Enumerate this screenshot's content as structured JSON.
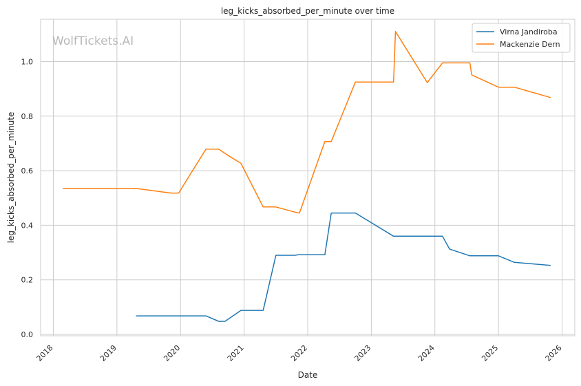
{
  "watermark": "WolfTickets.AI",
  "chart_data": {
    "type": "line",
    "title": "leg_kicks_absorbed_per_minute over time",
    "xlabel": "Date",
    "ylabel": "leg_kicks_absorbed_per_minute",
    "xlim": [
      2017.8,
      2026.2
    ],
    "ylim": [
      -0.005,
      1.155
    ],
    "x_ticks": [
      "2018",
      "2019",
      "2020",
      "2021",
      "2022",
      "2023",
      "2024",
      "2025",
      "2026"
    ],
    "y_ticks": [
      "0.0",
      "0.2",
      "0.4",
      "0.6",
      "0.8",
      "1.0"
    ],
    "grid": true,
    "legend_position": "top-right",
    "series": [
      {
        "name": "Virna Jandiroba",
        "color": "#1f77b4",
        "x": [
          2019.3,
          2020.4,
          2020.6,
          2020.7,
          2020.95,
          2021.3,
          2021.5,
          2021.8,
          2021.85,
          2022.27,
          2022.37,
          2022.75,
          2023.35,
          2024.12,
          2024.23,
          2024.55,
          2025.0,
          2025.25,
          2025.82
        ],
        "y": [
          0.068,
          0.068,
          0.048,
          0.048,
          0.088,
          0.088,
          0.29,
          0.29,
          0.292,
          0.292,
          0.445,
          0.445,
          0.36,
          0.36,
          0.313,
          0.288,
          0.288,
          0.264,
          0.253
        ]
      },
      {
        "name": "Mackenzie Dern",
        "color": "#ff7f0e",
        "x": [
          2018.15,
          2019.3,
          2019.85,
          2019.97,
          2020.4,
          2020.6,
          2020.72,
          2020.95,
          2021.3,
          2021.5,
          2021.82,
          2021.87,
          2022.27,
          2022.37,
          2022.75,
          2023.35,
          2023.38,
          2023.88,
          2024.12,
          2024.55,
          2024.58,
          2025.0,
          2025.25,
          2025.82
        ],
        "y": [
          0.535,
          0.535,
          0.518,
          0.518,
          0.679,
          0.679,
          0.66,
          0.627,
          0.467,
          0.467,
          0.447,
          0.445,
          0.707,
          0.707,
          0.925,
          0.925,
          1.11,
          0.923,
          0.995,
          0.995,
          0.951,
          0.906,
          0.906,
          0.868
        ]
      }
    ]
  }
}
